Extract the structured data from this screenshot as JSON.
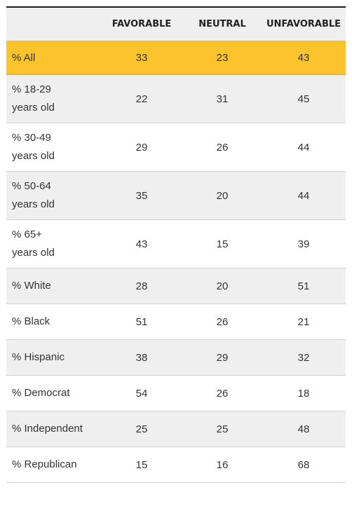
{
  "chart_data": {
    "type": "table",
    "columns": [
      "",
      "FAVORABLE",
      "NEUTRAL",
      "UNFAVORABLE"
    ],
    "rows": [
      {
        "label": "% All",
        "values": [
          33,
          23,
          43
        ],
        "highlight": true
      },
      {
        "label": "% 18-29\nyears old",
        "values": [
          22,
          31,
          45
        ]
      },
      {
        "label": "% 30-49\nyears old",
        "values": [
          29,
          26,
          44
        ]
      },
      {
        "label": "% 50-64\nyears old",
        "values": [
          35,
          20,
          44
        ]
      },
      {
        "label": "% 65+\nyears old",
        "values": [
          43,
          15,
          39
        ]
      },
      {
        "label": "% White",
        "values": [
          28,
          20,
          51
        ]
      },
      {
        "label": "% Black",
        "values": [
          51,
          26,
          21
        ]
      },
      {
        "label": "% Hispanic",
        "values": [
          38,
          29,
          32
        ]
      },
      {
        "label": "% Democrat",
        "values": [
          54,
          26,
          18
        ]
      },
      {
        "label": "% Independent",
        "values": [
          25,
          25,
          48
        ]
      },
      {
        "label": "% Republican",
        "values": [
          15,
          16,
          68
        ]
      }
    ],
    "colors": {
      "highlight": "#fcc32d",
      "stripe": "#efefef",
      "rule": "#1c1c1c"
    }
  }
}
